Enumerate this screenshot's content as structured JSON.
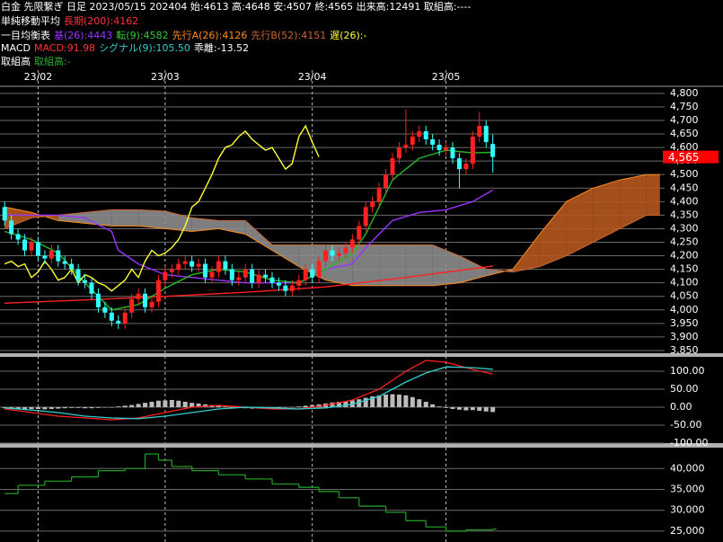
{
  "header": {
    "title": "白金 先限繋ぎ 日足 2023/05/15 202404 始:4613 高:4648 安:4507 終:4565 出来高:12491 取組高:----",
    "legend_rows": [
      {
        "label": "単純移動平均",
        "items": [
          {
            "text": "長期(200):4162",
            "color": "#ff3333"
          }
        ]
      },
      {
        "label": "一目均衡表",
        "items": [
          {
            "text": "基(26):4443",
            "color": "#9933ff"
          },
          {
            "text": "転(9):4582",
            "color": "#33cc33"
          },
          {
            "text": "先行A(26):4126",
            "color": "#ff8c1a"
          },
          {
            "text": "先行B(52):4151",
            "color": "#cc6633"
          },
          {
            "text": "遅(26):-",
            "color": "#ffff33"
          }
        ]
      },
      {
        "label": "MACD",
        "items": [
          {
            "text": "MACD:91.98",
            "color": "#ff3333"
          },
          {
            "text": "シグナル(9):105.50",
            "color": "#33cccc"
          },
          {
            "text": "乖離:-13.52",
            "color": "#ffffff"
          }
        ]
      },
      {
        "label": "取組高",
        "items": [
          {
            "text": "取組高:-",
            "color": "#33aa33"
          }
        ]
      }
    ]
  },
  "chart_data": [
    {
      "type": "candlestick",
      "x": [
        0,
        1,
        2,
        3,
        4,
        5,
        6,
        7,
        8,
        9,
        10,
        11,
        12,
        13,
        14,
        15,
        16,
        17,
        18,
        19,
        20,
        21,
        22,
        23,
        24,
        25,
        26,
        27,
        28,
        29,
        30,
        31,
        32,
        33,
        34,
        35,
        36,
        37,
        38,
        39,
        40,
        41,
        42,
        43,
        44,
        45,
        46,
        47,
        48,
        49,
        50,
        51,
        52,
        53,
        54,
        55,
        56,
        57,
        58,
        59,
        60,
        61,
        62,
        63,
        64,
        65,
        66,
        67,
        68,
        69,
        70,
        71,
        72,
        73
      ],
      "open": [
        4380,
        4330,
        4280,
        4260,
        4220,
        4250,
        4200,
        4190,
        4220,
        4180,
        4170,
        4150,
        4110,
        4100,
        4060,
        4010,
        3990,
        3960,
        3950,
        3990,
        4040,
        4060,
        4010,
        4030,
        4110,
        4140,
        4150,
        4170,
        4180,
        4160,
        4170,
        4120,
        4140,
        4180,
        4150,
        4110,
        4120,
        4150,
        4100,
        4130,
        4120,
        4100,
        4090,
        4070,
        4090,
        4110,
        4150,
        4120,
        4180,
        4220,
        4200,
        4210,
        4230,
        4260,
        4310,
        4380,
        4400,
        4450,
        4500,
        4560,
        4600,
        4610,
        4640,
        4660,
        4630,
        4610,
        4590,
        4600,
        4560,
        4520,
        4540,
        4640,
        4680,
        4613
      ],
      "high": [
        4400,
        4350,
        4300,
        4280,
        4270,
        4270,
        4220,
        4240,
        4240,
        4200,
        4190,
        4170,
        4130,
        4120,
        4080,
        4030,
        4010,
        3980,
        4010,
        4060,
        4080,
        4080,
        4050,
        4130,
        4160,
        4170,
        4190,
        4200,
        4200,
        4190,
        4190,
        4160,
        4200,
        4200,
        4170,
        4140,
        4170,
        4170,
        4150,
        4150,
        4140,
        4120,
        4110,
        4110,
        4130,
        4170,
        4170,
        4200,
        4240,
        4240,
        4230,
        4250,
        4280,
        4330,
        4400,
        4420,
        4470,
        4520,
        4580,
        4620,
        4740,
        4660,
        4680,
        4680,
        4650,
        4630,
        4620,
        4620,
        4580,
        4560,
        4660,
        4730,
        4700,
        4648
      ],
      "low": [
        4310,
        4260,
        4240,
        4200,
        4200,
        4180,
        4170,
        4170,
        4160,
        4150,
        4130,
        4090,
        4080,
        4040,
        3990,
        3970,
        3940,
        3930,
        3930,
        3970,
        4020,
        3990,
        3990,
        4010,
        4090,
        4120,
        4130,
        4150,
        4140,
        4140,
        4100,
        4100,
        4120,
        4130,
        4090,
        4090,
        4100,
        4080,
        4080,
        4100,
        4080,
        4070,
        4050,
        4050,
        4070,
        4090,
        4100,
        4100,
        4160,
        4180,
        4180,
        4190,
        4210,
        4240,
        4290,
        4360,
        4380,
        4430,
        4480,
        4540,
        4580,
        4590,
        4620,
        4610,
        4590,
        4570,
        4570,
        4540,
        4450,
        4500,
        4520,
        4620,
        4600,
        4507
      ],
      "close": [
        4330,
        4280,
        4260,
        4220,
        4250,
        4200,
        4190,
        4220,
        4180,
        4170,
        4150,
        4110,
        4100,
        4060,
        4010,
        3990,
        3960,
        3950,
        3990,
        4040,
        4060,
        4010,
        4030,
        4110,
        4140,
        4150,
        4170,
        4180,
        4160,
        4170,
        4120,
        4140,
        4180,
        4150,
        4110,
        4120,
        4150,
        4100,
        4130,
        4120,
        4100,
        4090,
        4070,
        4090,
        4110,
        4150,
        4120,
        4180,
        4220,
        4200,
        4210,
        4230,
        4260,
        4310,
        4380,
        4400,
        4450,
        4500,
        4560,
        4600,
        4610,
        4640,
        4660,
        4630,
        4610,
        4590,
        4600,
        4560,
        4520,
        4540,
        4640,
        4680,
        4620,
        4565
      ],
      "up_color": "#ff2020",
      "down_color": "#33ffff",
      "xlim": [
        -0.7,
        98.7
      ],
      "xticks": [
        {
          "value": 5,
          "label": "23/02"
        },
        {
          "value": 24,
          "label": "23/03"
        },
        {
          "value": 46,
          "label": "23/04"
        },
        {
          "value": 66,
          "label": "23/05"
        }
      ],
      "ylim": [
        3840,
        4826
      ],
      "yticks": [
        {
          "value": 3850,
          "label": "3,850"
        },
        {
          "value": 3900,
          "label": "3,900"
        },
        {
          "value": 3950,
          "label": "3,950"
        },
        {
          "value": 4000,
          "label": "4,000"
        },
        {
          "value": 4050,
          "label": "4,050"
        },
        {
          "value": 4100,
          "label": "4,100"
        },
        {
          "value": 4150,
          "label": "4,150"
        },
        {
          "value": 4200,
          "label": "4,200"
        },
        {
          "value": 4250,
          "label": "4,250"
        },
        {
          "value": 4300,
          "label": "4,300"
        },
        {
          "value": 4350,
          "label": "4,350"
        },
        {
          "value": 4400,
          "label": "4,400"
        },
        {
          "value": 4450,
          "label": "4,450"
        },
        {
          "value": 4500,
          "label": "4,500"
        },
        {
          "value": 4550,
          "label": "4,550"
        },
        {
          "value": 4600,
          "label": "4,600"
        },
        {
          "value": 4650,
          "label": "4,650"
        },
        {
          "value": 4700,
          "label": "4,700"
        },
        {
          "value": 4750,
          "label": "4,750"
        },
        {
          "value": 4800,
          "label": "4,800"
        }
      ],
      "price_marker": {
        "value": 4565,
        "label": "4,565",
        "color": "#ff0000"
      },
      "cloud": {
        "x": [
          0,
          4,
          8,
          12,
          16,
          20,
          24,
          28,
          32,
          36,
          40,
          44,
          48,
          52,
          56,
          60,
          64,
          68,
          72,
          76,
          80,
          84,
          88,
          92,
          96,
          98
        ],
        "span_a": {
          "color": "#ff8c1a",
          "values": [
            4380,
            4360,
            4330,
            4320,
            4310,
            4310,
            4300,
            4290,
            4300,
            4280,
            4220,
            4160,
            4110,
            4090,
            4090,
            4090,
            4090,
            4100,
            4126,
            4150,
            4280,
            4400,
            4450,
            4480,
            4500,
            4500
          ]
        },
        "span_b": {
          "color": "#cc6633",
          "values": [
            4300,
            4340,
            4350,
            4360,
            4370,
            4370,
            4365,
            4340,
            4330,
            4330,
            4240,
            4240,
            4240,
            4240,
            4240,
            4240,
            4240,
            4200,
            4151,
            4140,
            4160,
            4200,
            4250,
            4300,
            4350,
            4350
          ]
        },
        "up_fill": "#b4581e",
        "down_fill": "#8c8c8c"
      },
      "lines": [
        {
          "color": "#ff2020",
          "x": [
            0,
            10,
            24,
            36,
            48,
            60,
            73
          ],
          "values": [
            4025,
            4035,
            4050,
            4065,
            4085,
            4120,
            4162
          ]
        },
        {
          "color": "#9933ff",
          "x": [
            0,
            4,
            8,
            12,
            16,
            17,
            20,
            24,
            28,
            32,
            36,
            40,
            44,
            48,
            52,
            54,
            56,
            58,
            62,
            66,
            70,
            73
          ],
          "values": [
            4350,
            4350,
            4350,
            4340,
            4290,
            4220,
            4170,
            4130,
            4120,
            4110,
            4100,
            4100,
            4100,
            4150,
            4170,
            4230,
            4280,
            4330,
            4360,
            4370,
            4400,
            4443
          ]
        },
        {
          "color": "#22bb22",
          "x": [
            0,
            4,
            8,
            12,
            16,
            20,
            24,
            28,
            32,
            36,
            40,
            44,
            48,
            52,
            54,
            56,
            58,
            60,
            62,
            66,
            70,
            73
          ],
          "values": [
            4290,
            4260,
            4210,
            4100,
            4000,
            4020,
            4080,
            4130,
            4150,
            4140,
            4110,
            4100,
            4150,
            4210,
            4280,
            4380,
            4480,
            4520,
            4560,
            4590,
            4580,
            4582
          ]
        },
        {
          "color": "#ffff33",
          "x": [
            0,
            1,
            2,
            3,
            4,
            5,
            6,
            7,
            8,
            9,
            10,
            11,
            12,
            13,
            14,
            15,
            16,
            17,
            18,
            19,
            20,
            21,
            22,
            23,
            24,
            25,
            26,
            27,
            28,
            29,
            30,
            31,
            32,
            33,
            34,
            35,
            36,
            37,
            38,
            39,
            40,
            41,
            42,
            43,
            44,
            45,
            46,
            47
          ],
          "values": [
            4170,
            4180,
            4160,
            4170,
            4120,
            4140,
            4180,
            4150,
            4110,
            4120,
            4150,
            4100,
            4130,
            4120,
            4100,
            4090,
            4070,
            4090,
            4110,
            4150,
            4120,
            4180,
            4220,
            4200,
            4210,
            4230,
            4260,
            4310,
            4380,
            4400,
            4450,
            4500,
            4560,
            4600,
            4610,
            4640,
            4660,
            4630,
            4610,
            4590,
            4600,
            4560,
            4520,
            4540,
            4640,
            4680,
            4620,
            4565
          ]
        }
      ]
    },
    {
      "type": "macd",
      "xlim": [
        -0.7,
        98.7
      ],
      "ylim": [
        -100,
        140
      ],
      "yticks": [
        {
          "value": 100,
          "label": "100.00"
        },
        {
          "value": 50,
          "label": "50.00"
        },
        {
          "value": 0,
          "label": "0.00"
        },
        {
          "value": -50,
          "label": "-50.00"
        },
        {
          "value": -100,
          "label": "-100.00"
        }
      ],
      "histogram": {
        "color": "#bbbbbb",
        "x": [
          0,
          1,
          2,
          3,
          4,
          5,
          6,
          7,
          8,
          9,
          10,
          11,
          12,
          13,
          14,
          15,
          16,
          17,
          18,
          19,
          20,
          21,
          22,
          23,
          24,
          25,
          26,
          27,
          28,
          29,
          30,
          31,
          32,
          33,
          34,
          35,
          36,
          37,
          38,
          39,
          40,
          41,
          42,
          43,
          44,
          45,
          46,
          47,
          48,
          49,
          50,
          51,
          52,
          53,
          54,
          55,
          56,
          57,
          58,
          59,
          60,
          61,
          62,
          63,
          64,
          65,
          66,
          67,
          68,
          69,
          70,
          71,
          72,
          73
        ],
        "values": [
          -3,
          -4,
          -6,
          -6,
          -5,
          -5,
          -6,
          -5,
          -4,
          -3,
          -2,
          -2,
          -3,
          -3,
          -2,
          -1,
          0,
          2,
          4,
          6,
          9,
          12,
          15,
          18,
          19,
          20,
          18,
          15,
          12,
          10,
          8,
          6,
          4,
          2,
          0,
          -2,
          -3,
          -4,
          -4,
          -3,
          -3,
          -2,
          -1,
          0,
          2,
          4,
          6,
          8,
          10,
          13,
          15,
          17,
          19,
          22,
          26,
          30,
          33,
          35,
          36,
          35,
          33,
          28,
          22,
          15,
          8,
          2,
          -2,
          -5,
          -7,
          -9,
          -8,
          -10,
          -12,
          -13.52
        ]
      },
      "lines": [
        {
          "color": "#ff2020",
          "x": [
            0,
            4,
            8,
            12,
            16,
            20,
            24,
            28,
            32,
            36,
            40,
            44,
            48,
            52,
            56,
            60,
            63,
            66,
            70,
            73
          ],
          "values": [
            -5,
            -15,
            -25,
            -30,
            -35,
            -30,
            -15,
            0,
            5,
            0,
            -5,
            -5,
            5,
            20,
            50,
            100,
            130,
            125,
            105,
            91.98
          ]
        },
        {
          "color": "#33cccc",
          "x": [
            0,
            4,
            8,
            12,
            16,
            20,
            24,
            28,
            32,
            36,
            40,
            44,
            48,
            52,
            56,
            60,
            63,
            66,
            70,
            73
          ],
          "values": [
            -2,
            -8,
            -15,
            -25,
            -30,
            -32,
            -25,
            -15,
            -5,
            0,
            -2,
            -5,
            -2,
            8,
            30,
            70,
            95,
            112,
            110,
            105.5
          ]
        }
      ]
    },
    {
      "type": "step",
      "xlim": [
        -0.7,
        98.7
      ],
      "ylim": [
        22400,
        44800
      ],
      "yticks": [
        {
          "value": 25000,
          "label": "25,000"
        },
        {
          "value": 30000,
          "label": "30,000"
        },
        {
          "value": 35000,
          "label": "35,000"
        },
        {
          "value": 40000,
          "label": "40,000"
        }
      ],
      "lines": [
        {
          "color": "#229922",
          "x": [
            0,
            2,
            6,
            10,
            14,
            18,
            21,
            23,
            25,
            28,
            32,
            36,
            40,
            44,
            47,
            50,
            53,
            57,
            60,
            63,
            66,
            69,
            73
          ],
          "values": [
            34000,
            36000,
            37000,
            38000,
            39500,
            40000,
            43500,
            42000,
            40500,
            39500,
            38500,
            37500,
            36300,
            35500,
            34500,
            33000,
            31000,
            29500,
            27500,
            26000,
            25000,
            25300,
            25500
          ]
        }
      ]
    }
  ]
}
